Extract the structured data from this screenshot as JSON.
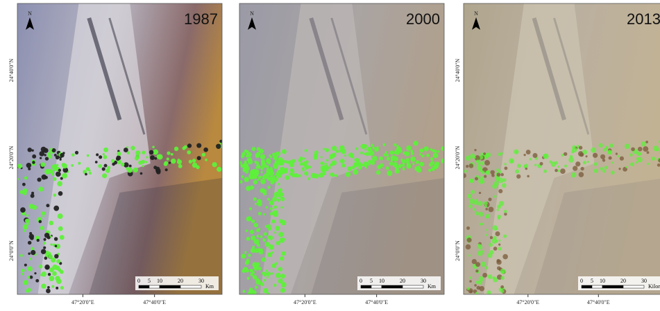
{
  "panels": [
    {
      "year": "1987",
      "x_labels": [
        "47°20'0\"E",
        "47°40'0\"E"
      ],
      "y_labels": [
        "24°40'0\"N",
        "24°20'0\"N",
        "24°0'0\"N"
      ],
      "north": "N",
      "scale_ticks": [
        "0",
        "5",
        "10",
        "20",
        "30"
      ],
      "scale_unit": "Km"
    },
    {
      "year": "2000",
      "x_labels": [
        "47°20'0\"E",
        "47°40'0\"E"
      ],
      "y_labels": [],
      "north": "N",
      "scale_ticks": [
        "0",
        "5",
        "10",
        "20",
        "30"
      ],
      "scale_unit": "Km"
    },
    {
      "year": "2013",
      "x_labels": [
        "47°20'0\"E",
        "47°40'0\"E"
      ],
      "y_labels": [
        "24°40'0\"N",
        "24°20'0\"N",
        "24°0'0\"N"
      ],
      "north": "N",
      "scale_ticks": [
        "0",
        "5",
        "10",
        "20",
        "30"
      ],
      "scale_unit": "Kilometers"
    }
  ]
}
